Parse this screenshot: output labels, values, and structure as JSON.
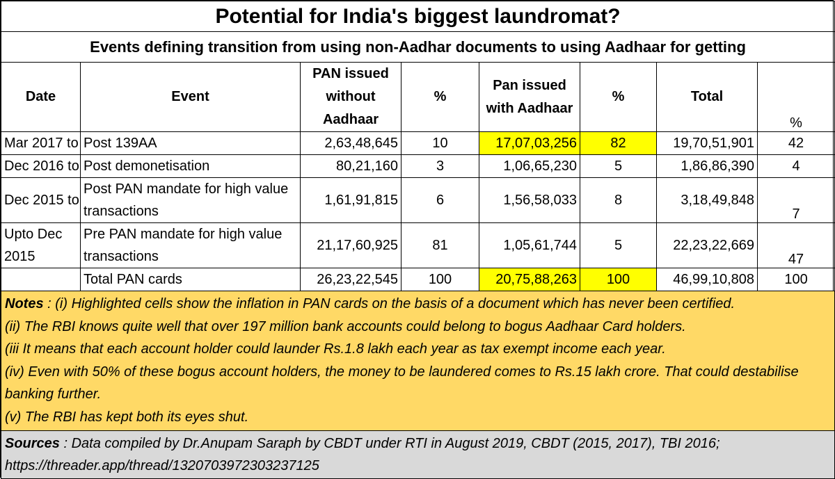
{
  "title": "Potential for India's biggest laundromat?",
  "subtitle": "Events defining transition from using non-Aadhar documents to using Aadhaar for getting",
  "headers": {
    "date": "Date",
    "event": "Event",
    "pan_without": "PAN issued without Aadhaar",
    "pct1": "%",
    "pan_with": "Pan issued with Aadhaar",
    "pct2": "%",
    "total": "Total",
    "pct3": "%"
  },
  "rows": [
    {
      "date": "Mar 2017 to",
      "event": "Post 139AA",
      "without": "2,63,48,645",
      "pct1": "10",
      "with": "17,07,03,256",
      "pct2": "82",
      "total": "19,70,51,901",
      "pct3": "42"
    },
    {
      "date": "Dec 2016 to",
      "event": "Post demonetisation",
      "without": "80,21,160",
      "pct1": "3",
      "with": "1,06,65,230",
      "pct2": "5",
      "total": "1,86,86,390",
      "pct3": "4"
    },
    {
      "date": "Dec 2015 to",
      "event": "Post PAN mandate for high value transactions",
      "without": "1,61,91,815",
      "pct1": "6",
      "with": "1,56,58,033",
      "pct2": "8",
      "total": "3,18,49,848",
      "pct3": "7"
    },
    {
      "date": "Upto Dec 2015",
      "event": "Pre PAN mandate for high value transactions",
      "without": "21,17,60,925",
      "pct1": "81",
      "with": "1,05,61,744",
      "pct2": "5",
      "total": "22,23,22,669",
      "pct3": "47"
    }
  ],
  "total_row": {
    "date": "",
    "event": "Total PAN cards",
    "without": "26,23,22,545",
    "pct1": "100",
    "with": "20,75,88,263",
    "pct2": "100",
    "total": "46,99,10,808",
    "pct3": "100"
  },
  "notes": {
    "label": "Notes",
    "lines": [
      " : (i) Highlighted cells show the inflation in PAN cards on the basis of a document which has never been certified.",
      "(ii) The RBI knows quite well that over 197 million bank accounts could belong to bogus Aadhaar Card holders.",
      "(iii It means that each account holder could launder Rs.1.8 lakh each year as tax exempt income each year.",
      "(iv) Even with 50% of these bogus account holders, the money to be laundered comes to Rs.15 lakh crore. That could destabilise banking further.",
      "(v) The RBI has kept both its eyes shut."
    ]
  },
  "sources": {
    "label": "Sources",
    "text": " : Data compiled by Dr.Anupam Saraph by CBDT under RTI in August 2019, CBDT (2015, 2017), TBI 2016; https://threader.app/thread/1320703972303237125"
  },
  "colors": {
    "highlight": "#ffff00",
    "notes_bg": "#ffd966",
    "sources_bg": "#d9d9d9"
  }
}
